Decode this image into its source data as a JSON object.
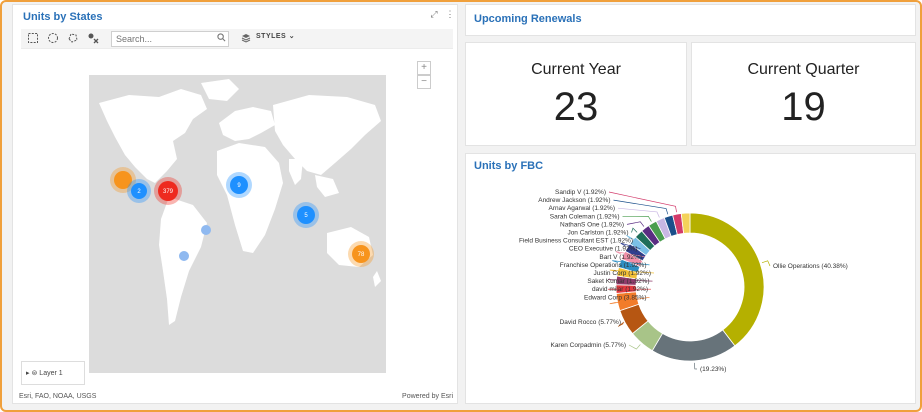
{
  "map_panel": {
    "title": "Units by States",
    "search_placeholder": "Search...",
    "styles_label": "STYLES",
    "zoom_in": "+",
    "zoom_out": "−",
    "layer_label": "Layer 1",
    "attribution": "Esri, FAO, NOAA, USGS",
    "powered_by": "Powered by Esri",
    "markers": [
      {
        "label": "",
        "color": "#f7941d"
      },
      {
        "label": "2",
        "color": "#1e90ff"
      },
      {
        "label": "379",
        "color": "#ee2a1f"
      },
      {
        "label": "9",
        "color": "#1e90ff"
      },
      {
        "label": "5",
        "color": "#1e90ff"
      },
      {
        "label": "78",
        "color": "#f7941d"
      }
    ]
  },
  "renewals": {
    "title": "Upcoming Renewals",
    "current_year_label": "Current Year",
    "current_year_value": "23",
    "current_quarter_label": "Current Quarter",
    "current_quarter_value": "19"
  },
  "fbc_panel": {
    "title": "Units by FBC"
  },
  "chart_data": {
    "type": "pie",
    "title": "Units by FBC",
    "donut": true,
    "slices": [
      {
        "label": "Ollie Operations (40.38%)",
        "value": 40.38,
        "color": "#b5b000"
      },
      {
        "label": "(19.23%)",
        "value": 19.23,
        "color": "#67737a"
      },
      {
        "label": "Karen Corpadmin (5.77%)",
        "value": 5.77,
        "color": "#a8c488"
      },
      {
        "label": "David Rocco (5.77%)",
        "value": 5.77,
        "color": "#b65612"
      },
      {
        "label": "Edward Corp (3.85%)",
        "value": 3.85,
        "color": "#f27c2a"
      },
      {
        "label": "david milar (1.92%)",
        "value": 1.92,
        "color": "#e2383f"
      },
      {
        "label": "Saket Kumar (1.92%)",
        "value": 1.92,
        "color": "#8e3b6a"
      },
      {
        "label": "Justin Corp (1.92%)",
        "value": 1.92,
        "color": "#f2c037"
      },
      {
        "label": "Franchise Operations (1.92%)",
        "value": 1.92,
        "color": "#2e8fc2"
      },
      {
        "label": "Bart V (1.92%)",
        "value": 1.92,
        "color": "#f08fa8"
      },
      {
        "label": "CEO Executive (1.92%)",
        "value": 1.92,
        "color": "#2f3f8f"
      },
      {
        "label": "Field Business Consultant EST (1.92%)",
        "value": 1.92,
        "color": "#7abfe6"
      },
      {
        "label": "Jon Carlston (1.92%)",
        "value": 1.92,
        "color": "#1f6e5a"
      },
      {
        "label": "NathanS One (1.92%)",
        "value": 1.92,
        "color": "#5a2d82"
      },
      {
        "label": "Sarah Coleman (1.92%)",
        "value": 1.92,
        "color": "#4a9e4f"
      },
      {
        "label": "Arnav Agarwal (1.92%)",
        "value": 1.92,
        "color": "#c9b7e3"
      },
      {
        "label": "Andrew Jackson (1.92%)",
        "value": 1.92,
        "color": "#1a4f8a"
      },
      {
        "label": "Sandip V (1.92%)",
        "value": 1.92,
        "color": "#d23a6a"
      },
      {
        "label": "",
        "value": 1.92,
        "color": "#f4d25a"
      }
    ]
  }
}
